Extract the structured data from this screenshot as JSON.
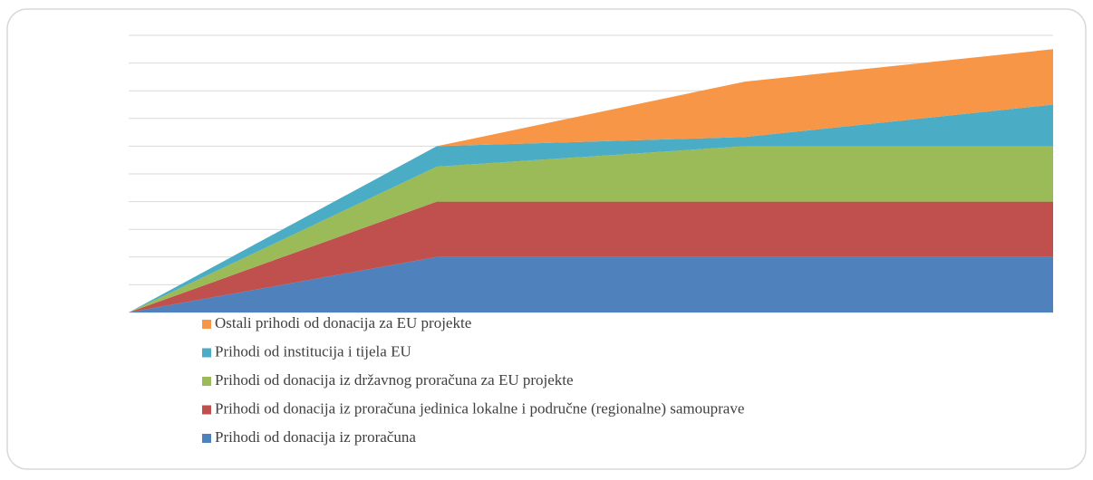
{
  "chart_data": {
    "type": "stacked_area",
    "categories": [
      null,
      null,
      null,
      null
    ],
    "series": [
      {
        "name": "Prihodi od donacija iz proračuna",
        "color": "#4f81bd",
        "values": [
          0,
          2,
          2,
          2
        ]
      },
      {
        "name": "Prihodi od donacija iz proračuna jedinica lokalne i područne (regionalne) samouprave",
        "color": "#c0504d",
        "values": [
          0,
          2,
          2,
          2
        ]
      },
      {
        "name": "Prihodi od donacija iz državnog proračuna za EU projekte",
        "color": "#9bbb59",
        "values": [
          0,
          1.26,
          2,
          2
        ]
      },
      {
        "name": "Prihodi od institucija i tijela EU",
        "color": "#4bacc6",
        "values": [
          0,
          0.74,
          0.33,
          1.5
        ]
      },
      {
        "name": "Ostali prihodi od donacija za EU projekte",
        "color": "#f79646",
        "values": [
          0,
          0,
          2,
          2
        ]
      }
    ],
    "ylim": [
      0,
      10
    ],
    "yticks": [
      0,
      1,
      2,
      3,
      4,
      5,
      6,
      7,
      8,
      9,
      10
    ],
    "grid": true
  }
}
